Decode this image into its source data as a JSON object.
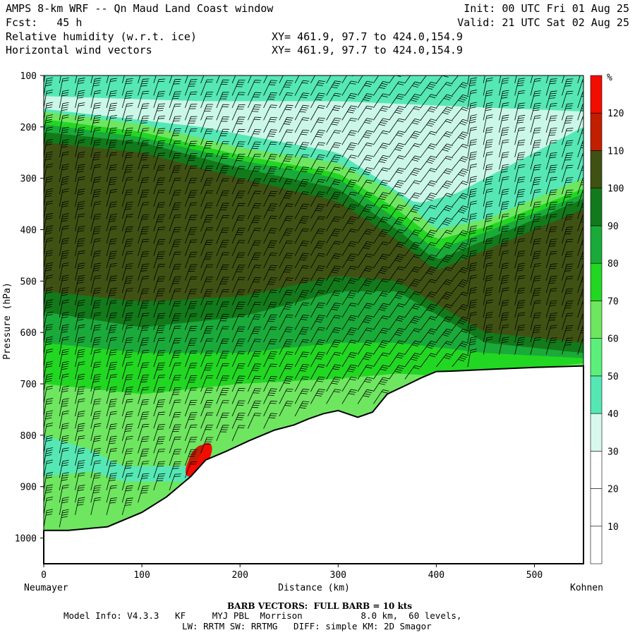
{
  "header": {
    "title": "AMPS 8-km WRF -- Qn Maud Land Coast window",
    "forecast": "Fcst:   45 h",
    "field1": "Relative humidity (w.r.t. ice)",
    "field2": "Horizontal wind vectors",
    "xy1": "XY= 461.9, 97.7 to 424.0,154.9",
    "xy2": "XY= 461.9, 97.7 to 424.0,154.9",
    "init": "Init: 00 UTC Fri 01 Aug 25",
    "valid": "Valid: 21 UTC Sat 02 Aug 25"
  },
  "chart_data": {
    "type": "heatmap",
    "title": "Relative humidity (w.r.t. ice) cross section with horizontal wind vectors",
    "xlabel": "Distance (km)",
    "ylabel": "Pressure (hPa)",
    "xlim": [
      0,
      550
    ],
    "ylim": [
      1050,
      100
    ],
    "x_ticks": [
      0,
      100,
      200,
      300,
      400,
      500
    ],
    "y_ticks": [
      100,
      200,
      300,
      400,
      500,
      600,
      700,
      800,
      900,
      1000
    ],
    "left_endpoint": "Neumayer",
    "right_endpoint": "Kohnen",
    "colorbar": {
      "unit": "%",
      "levels": [
        10,
        20,
        30,
        40,
        50,
        60,
        70,
        80,
        90,
        100,
        110,
        120
      ],
      "colors": [
        "#ffffff",
        "#ffffff",
        "#ffffff",
        "#d8f8ee",
        "#55e8b5",
        "#5bf07a",
        "#6ee660",
        "#22d722",
        "#1aaa3a",
        "#127a1a",
        "#3f5213",
        "#c21e00",
        "#f20d00"
      ]
    },
    "terrain_profile": {
      "x_km": [
        0,
        25,
        65,
        100,
        125,
        150,
        165,
        185,
        210,
        235,
        255,
        270,
        285,
        300,
        320,
        335,
        350,
        370,
        385,
        400,
        420,
        450,
        500,
        550
      ],
      "surface_hPa": [
        985,
        985,
        978,
        950,
        920,
        880,
        848,
        832,
        810,
        790,
        780,
        768,
        758,
        752,
        765,
        755,
        720,
        702,
        688,
        676,
        675,
        672,
        668,
        665
      ]
    },
    "barb_note": "FULL BARB = 10 kts"
  },
  "footer": {
    "barb_vectors": "BARB VECTORS:  FULL BARB = 10 kts",
    "model_line": "Model Info: V4.3.3   KF     MYJ PBL  Morrison           8.0 km,  60 levels,",
    "physics_line": "LW: RRTM SW: RRTMG   DIFF: simple KM: 2D Smagor"
  }
}
